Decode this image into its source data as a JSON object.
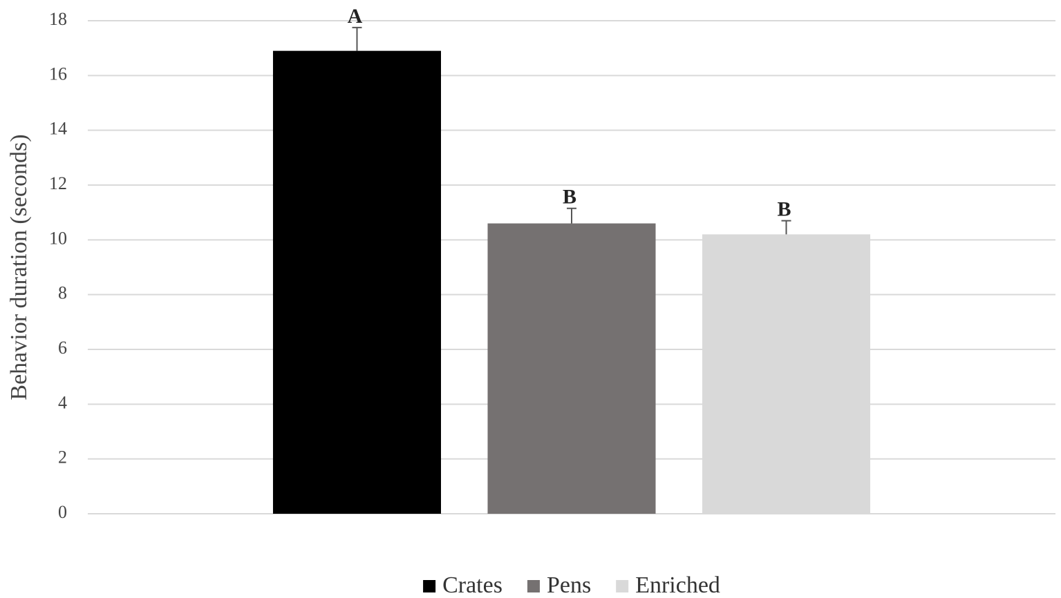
{
  "chart_data": {
    "type": "bar",
    "y_label": "Behavior duration (seconds)",
    "categories": [
      null
    ],
    "series": [
      {
        "name": "Crates",
        "color": "#000000",
        "values": [
          16.9
        ],
        "errors": [
          0.85
        ],
        "annotation": "A"
      },
      {
        "name": "Pens",
        "color": "#757171",
        "values": [
          10.6
        ],
        "errors": [
          0.55
        ],
        "annotation": "B"
      },
      {
        "name": "Enriched",
        "color": "#d9d9d9",
        "values": [
          10.2
        ],
        "errors": [
          0.5
        ],
        "annotation": "B"
      }
    ],
    "ylim": [
      0,
      18
    ],
    "yticks": [
      0,
      2,
      4,
      6,
      8,
      10,
      12,
      14,
      16,
      18
    ],
    "grid": true,
    "legend": "bottom"
  }
}
